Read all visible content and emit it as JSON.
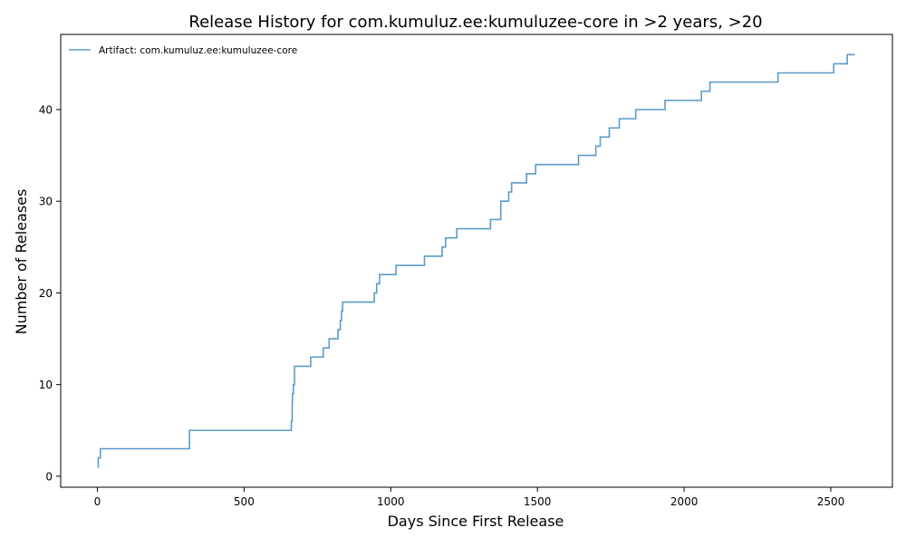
{
  "chart_data": {
    "type": "line",
    "step": "post",
    "title": "Release History for com.kumuluz.ee:kumuluzee-core in >2 years, >20",
    "xlabel": "Days Since First Release",
    "ylabel": "Number of Releases",
    "xlim": [
      -125,
      2710
    ],
    "ylim": [
      -1.2,
      48.2
    ],
    "xticks": [
      0,
      500,
      1000,
      1500,
      2000,
      2500
    ],
    "yticks": [
      0,
      10,
      20,
      30,
      40
    ],
    "grid": false,
    "legend": {
      "position": "top-left"
    },
    "series": [
      {
        "name": "Artifact: com.kumuluz.ee:kumuluzee-core",
        "color": "#5b9bc8",
        "x": [
          0,
          3,
          10,
          314,
          661,
          664,
          665,
          668,
          672,
          727,
          770,
          790,
          820,
          828,
          832,
          836,
          840,
          944,
          952,
          962,
          1018,
          1115,
          1175,
          1187,
          1225,
          1340,
          1375,
          1402,
          1412,
          1463,
          1494,
          1640,
          1699,
          1714,
          1745,
          1779,
          1835,
          1935,
          2059,
          2088,
          2320,
          2510,
          2556,
          2582
        ],
        "y": [
          1,
          2,
          3,
          5,
          6,
          8,
          9,
          10,
          12,
          13,
          14,
          15,
          16,
          17,
          18,
          19,
          19,
          20,
          21,
          22,
          23,
          24,
          25,
          26,
          27,
          28,
          30,
          31,
          32,
          33,
          34,
          35,
          36,
          37,
          38,
          39,
          40,
          41,
          42,
          43,
          44,
          45,
          46,
          46
        ]
      }
    ]
  }
}
